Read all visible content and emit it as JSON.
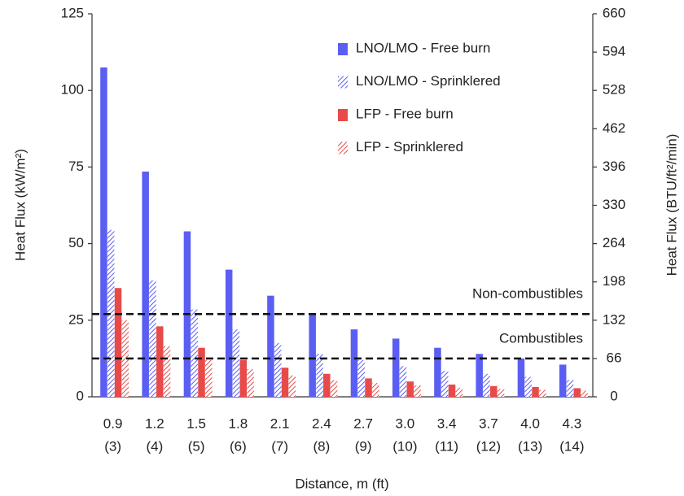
{
  "chart_data": {
    "type": "bar",
    "categories": [
      [
        "0.9",
        "(3)"
      ],
      [
        "1.2",
        "(4)"
      ],
      [
        "1.5",
        "(5)"
      ],
      [
        "1.8",
        "(6)"
      ],
      [
        "2.1",
        "(7)"
      ],
      [
        "2.4",
        "(8)"
      ],
      [
        "2.7",
        "(9)"
      ],
      [
        "3.0",
        "(10)"
      ],
      [
        "3.4",
        "(11)"
      ],
      [
        "3.7",
        "(12)"
      ],
      [
        "4.0",
        "(13)"
      ],
      [
        "4.3",
        "(14)"
      ]
    ],
    "series": [
      {
        "name": "LNO/LMO - Free burn",
        "color": "#5b5ef2",
        "hatch": false,
        "values": [
          107.5,
          73.5,
          54,
          41.5,
          33,
          27,
          22,
          19,
          16,
          14,
          12.5,
          10.5
        ]
      },
      {
        "name": "LNO/LMO - Sprinklered",
        "color": "#5b5ef2",
        "hatch": true,
        "values": [
          54.5,
          38,
          28.5,
          22,
          17.5,
          14,
          12,
          10,
          8.5,
          7.5,
          6.5,
          5.5
        ]
      },
      {
        "name": "LFP - Free burn",
        "color": "#e84a4a",
        "hatch": false,
        "values": [
          35.5,
          23,
          16,
          12,
          9.5,
          7.5,
          6,
          5,
          4,
          3.5,
          3.2,
          2.8
        ]
      },
      {
        "name": "LFP - Sprinklered",
        "color": "#e84a4a",
        "hatch": true,
        "values": [
          25,
          16.5,
          12,
          9,
          7,
          5.5,
          4.5,
          3.7,
          3,
          2.6,
          2.3,
          2
        ]
      }
    ],
    "ylim": [
      0,
      125
    ],
    "yticks": [
      0,
      25,
      50,
      75,
      100,
      125
    ],
    "y2lim": [
      0,
      660
    ],
    "y2ticks": [
      0,
      66,
      132,
      198,
      264,
      330,
      396,
      462,
      528,
      594,
      660
    ],
    "ylabel": "Heat Flux (kW/m²)",
    "y2label": "Heat Flux (BTU/ft²/min)",
    "xlabel": "Distance, m (ft)",
    "reference_lines": [
      {
        "value": 27,
        "label": "Non-combustibles"
      },
      {
        "value": 12.5,
        "label": "Combustibles"
      }
    ],
    "legend": "upper right"
  }
}
